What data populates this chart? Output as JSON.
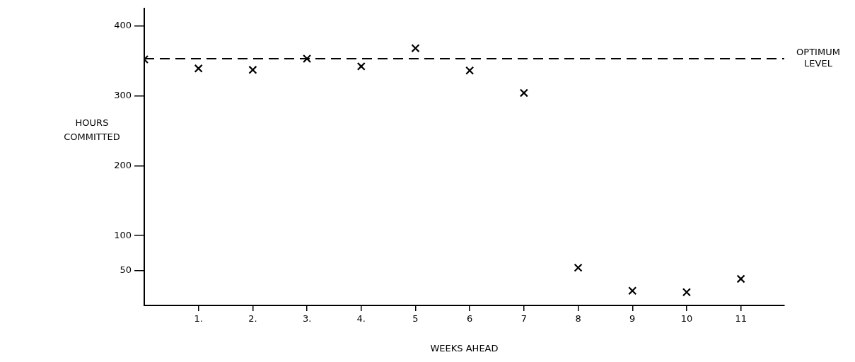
{
  "chart_data": {
    "type": "scatter",
    "xlabel": "WEEKS AHEAD",
    "ylabel": "HOURS COMMITTED",
    "x": [
      0,
      1,
      2,
      3,
      4,
      5,
      6,
      7,
      8,
      9,
      10,
      11
    ],
    "series": [
      {
        "color": "#000000",
        "values": [
          352,
          339,
          337,
          353,
          342,
          368,
          336,
          304,
          54,
          21,
          19,
          38
        ]
      }
    ],
    "xlim": [
      0,
      11.8
    ],
    "xticks": [
      {
        "value": 1,
        "label": "1."
      },
      {
        "value": 2,
        "label": "2."
      },
      {
        "value": 3,
        "label": "3."
      },
      {
        "value": 4,
        "label": "4."
      },
      5,
      6,
      7,
      8,
      9,
      10,
      11
    ],
    "ylim": [
      0,
      425
    ],
    "yticks": [
      50,
      100,
      200,
      300,
      400
    ],
    "ref_lines": [
      {
        "axis": "y",
        "value": 353,
        "label": "OPTIMUM LEVEL",
        "color": "#000000",
        "line_style": "dashed"
      }
    ],
    "marker": "cross",
    "grid": false,
    "legend": false
  }
}
